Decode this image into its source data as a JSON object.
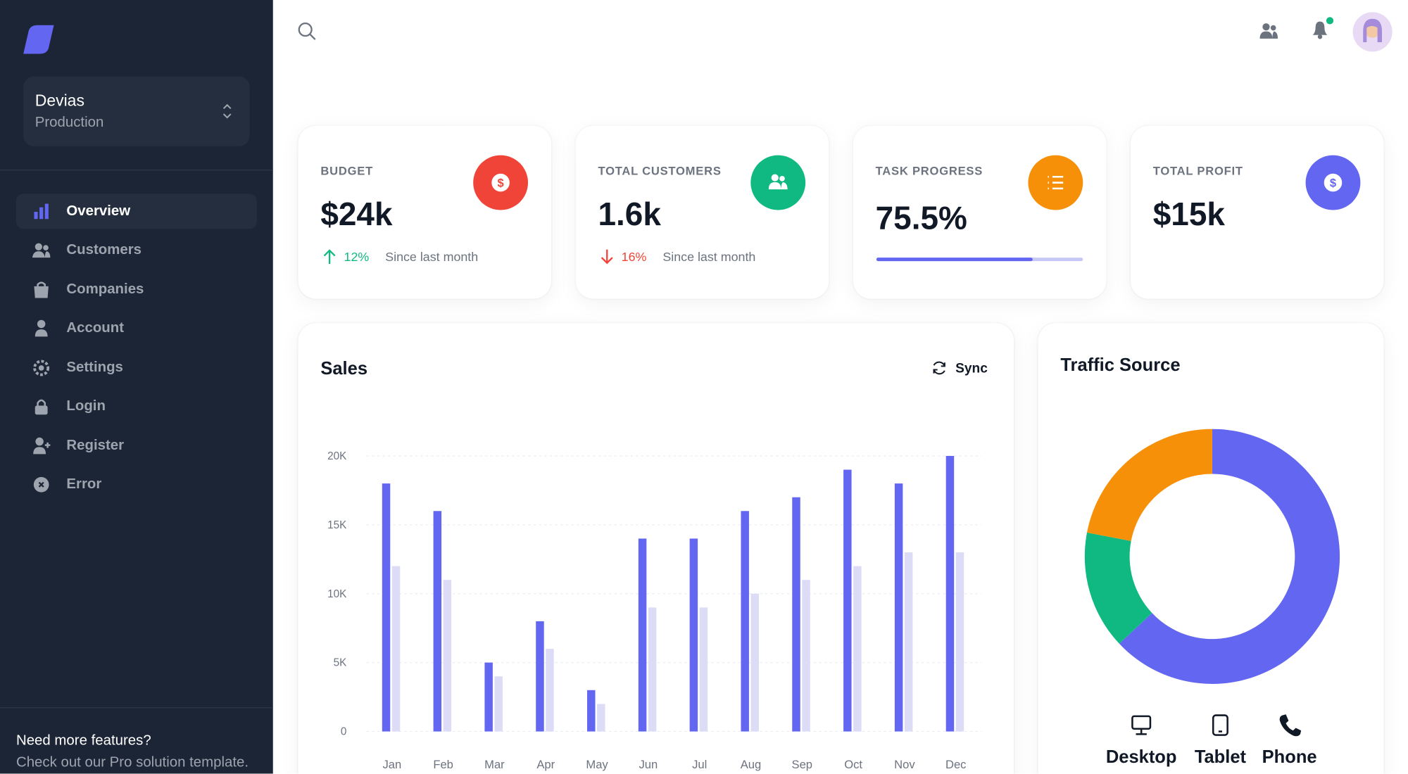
{
  "workspace": {
    "name": "Devias",
    "env": "Production"
  },
  "nav": [
    "Overview",
    "Customers",
    "Companies",
    "Account",
    "Settings",
    "Login",
    "Register",
    "Error"
  ],
  "promo": {
    "title": "Need more features?",
    "text": "Check out our Pro solution template."
  },
  "cards": [
    {
      "label": "BUDGET",
      "value": "$24k",
      "change": "12%",
      "note": "Since last month"
    },
    {
      "label": "TOTAL CUSTOMERS",
      "value": "1.6k",
      "change": "16%",
      "note": "Since last month"
    },
    {
      "label": "TASK PROGRESS",
      "value": "75.5%",
      "progress": 75.5
    },
    {
      "label": "TOTAL PROFIT",
      "value": "$15k"
    }
  ],
  "sales_action": "Sync",
  "chart_data": [
    {
      "type": "bar",
      "title": "Sales",
      "categories": [
        "Jan",
        "Feb",
        "Mar",
        "Apr",
        "May",
        "Jun",
        "Jul",
        "Aug",
        "Sep",
        "Oct",
        "Nov",
        "Dec"
      ],
      "series": [
        {
          "color": "#6366f1",
          "values": [
            18000,
            16000,
            5000,
            8000,
            3000,
            14000,
            14000,
            16000,
            17000,
            19000,
            18000,
            20000
          ]
        },
        {
          "color": "#dcdcf7",
          "values": [
            12000,
            11000,
            4000,
            6000,
            2000,
            9000,
            9000,
            10000,
            11000,
            12000,
            13000,
            13000
          ]
        }
      ],
      "ylim": [
        0,
        20000
      ],
      "yticks": [
        0,
        {
          "value": 5000,
          "label": "5K"
        },
        {
          "value": 10000,
          "label": "10K"
        },
        {
          "value": 15000,
          "label": "15K"
        },
        {
          "value": 20000,
          "label": "20K"
        }
      ],
      "grid": true
    },
    {
      "type": "donut",
      "title": "Traffic Source",
      "categories": [
        "Desktop",
        "Tablet",
        "Phone"
      ],
      "values": [
        63,
        15,
        22
      ],
      "colors": [
        "#6366f1",
        "#10b981",
        "#f79009"
      ]
    }
  ]
}
